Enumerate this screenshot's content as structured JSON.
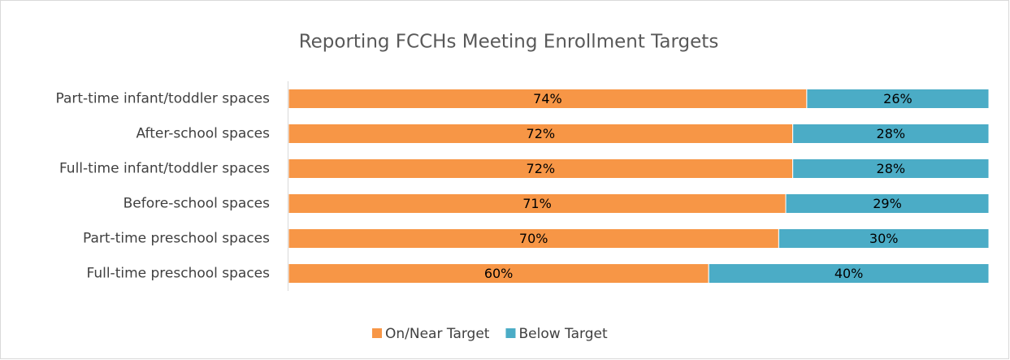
{
  "chart_data": {
    "type": "stacked_bar_horizontal",
    "title": "Reporting FCCHs Meeting Enrollment Targets",
    "categories": [
      "Part-time infant/toddler spaces",
      "After-school spaces",
      "Full-time infant/toddler spaces",
      "Before-school spaces",
      "Part-time preschool spaces",
      "Full-time preschool spaces"
    ],
    "series": [
      {
        "name": "On/Near Target",
        "color": "#F79646",
        "values": [
          74,
          72,
          72,
          71,
          70,
          60
        ],
        "value_labels": [
          "74%",
          "72%",
          "72%",
          "71%",
          "70%",
          "60%"
        ]
      },
      {
        "name": "Below Target",
        "color": "#4BACC6",
        "values": [
          26,
          28,
          28,
          29,
          30,
          40
        ],
        "value_labels": [
          "26%",
          "28%",
          "28%",
          "29%",
          "30%",
          "40%"
        ]
      }
    ],
    "xlim": [
      0,
      100
    ],
    "legend": "bottom"
  }
}
